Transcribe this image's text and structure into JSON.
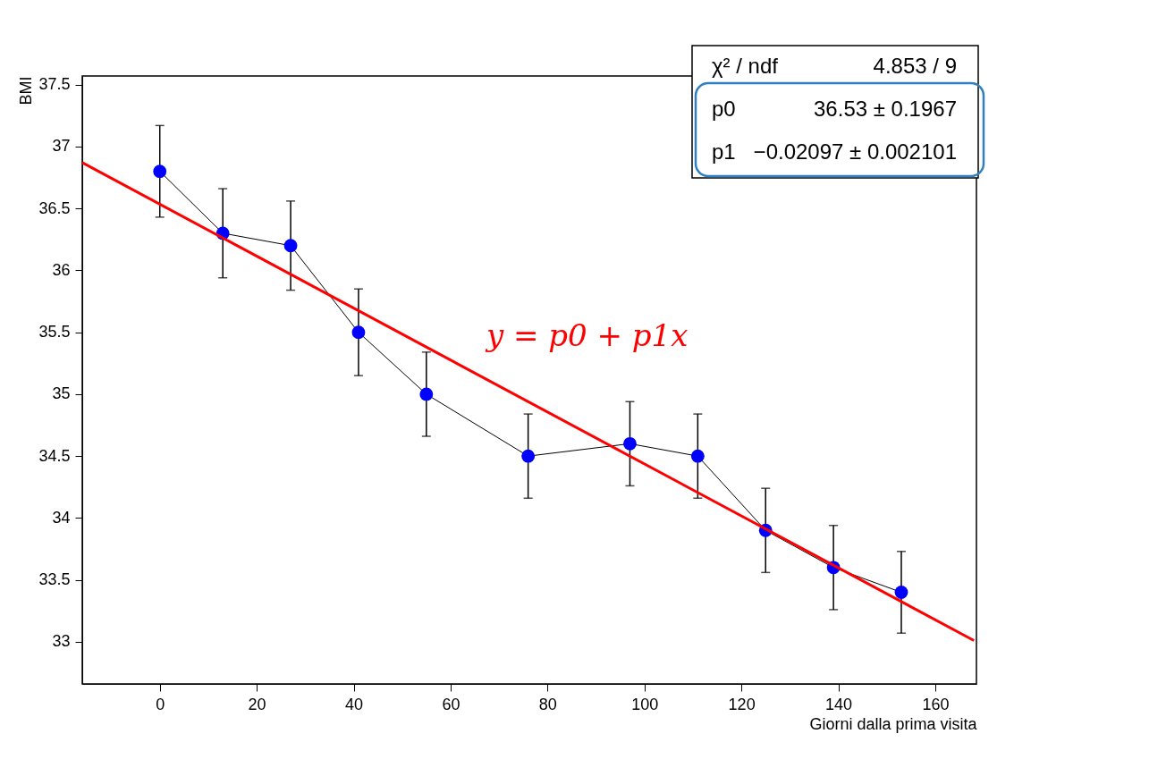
{
  "chart_data": {
    "type": "line",
    "xlabel": "Giorni dalla prima visita",
    "ylabel": "BMI",
    "x": [
      0,
      13,
      27,
      41,
      55,
      76,
      97,
      111,
      125,
      139,
      153
    ],
    "series": [
      {
        "color": "#0000ff",
        "marker": "circle",
        "values": [
          36.8,
          36.3,
          36.2,
          35.5,
          35.0,
          34.5,
          34.6,
          34.5,
          33.9,
          33.6,
          33.4
        ],
        "errors": [
          0.37,
          0.36,
          0.36,
          0.35,
          0.34,
          0.34,
          0.34,
          0.34,
          0.34,
          0.34,
          0.33
        ]
      },
      {
        "color": "#ff0000",
        "marker": "none",
        "x": [
          -16,
          168
        ],
        "values": [
          36.87,
          33.01
        ]
      }
    ],
    "xlim": [
      -16,
      168.5
    ],
    "xticks": [
      0,
      20,
      40,
      60,
      80,
      100,
      120,
      140,
      160
    ],
    "ylim": [
      32.66,
      37.57
    ],
    "yticks": [
      33,
      33.5,
      34,
      34.5,
      35,
      35.5,
      36,
      36.5,
      37,
      37.5
    ],
    "grid": false,
    "annotations": [
      "χ² / ndf",
      "4.853 / 9",
      "p0",
      "36.53 ± 0.1967",
      "p1",
      "−0.02097 ± 0.002101",
      "y = p0 + p1x"
    ]
  }
}
